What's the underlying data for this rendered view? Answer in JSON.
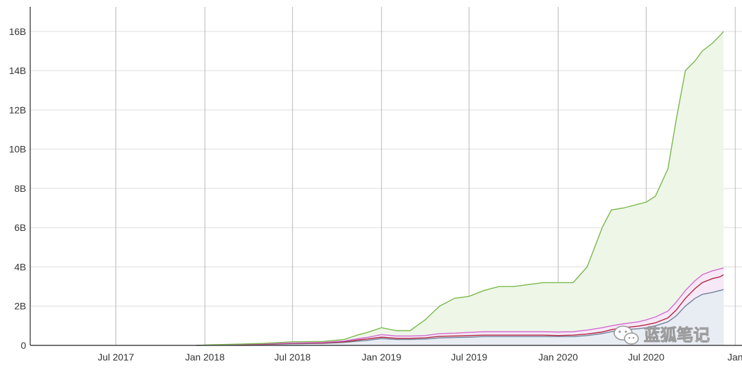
{
  "chart_data": {
    "type": "area",
    "title": "",
    "xlabel": "",
    "ylabel": "",
    "x_ticks": [
      {
        "date": "2017-07-01",
        "label": "Jul 2017"
      },
      {
        "date": "2018-01-01",
        "label": "Jan 2018"
      },
      {
        "date": "2018-07-01",
        "label": "Jul 2018"
      },
      {
        "date": "2019-01-01",
        "label": "Jan 2019"
      },
      {
        "date": "2019-07-01",
        "label": "Jul 2019"
      },
      {
        "date": "2020-01-01",
        "label": "Jan 2020"
      },
      {
        "date": "2020-07-01",
        "label": "Jul 2020"
      },
      {
        "date": "2021-01-01",
        "label": "Jan"
      }
    ],
    "y_ticks": [
      {
        "value": 0,
        "label": "0"
      },
      {
        "value": 2,
        "label": "2B"
      },
      {
        "value": 4,
        "label": "4B"
      },
      {
        "value": 6,
        "label": "6B"
      },
      {
        "value": 8,
        "label": "8B"
      },
      {
        "value": 10,
        "label": "10B"
      },
      {
        "value": 12,
        "label": "12B"
      },
      {
        "value": 14,
        "label": "14B"
      },
      {
        "value": 16,
        "label": "16B"
      }
    ],
    "xlim": [
      "2017-01-05",
      "2021-01-15"
    ],
    "ylim": [
      0,
      17.6
    ],
    "y_unit": "B",
    "grid": {
      "horizontal": true,
      "vertical": true
    },
    "legend": "none",
    "x": [
      "2017-12-15",
      "2018-01-15",
      "2018-03-01",
      "2018-05-01",
      "2018-07-01",
      "2018-09-01",
      "2018-10-15",
      "2018-11-15",
      "2018-12-01",
      "2019-01-01",
      "2019-02-01",
      "2019-03-01",
      "2019-04-01",
      "2019-05-01",
      "2019-06-01",
      "2019-07-01",
      "2019-08-01",
      "2019-09-01",
      "2019-10-01",
      "2019-11-01",
      "2019-12-01",
      "2020-01-01",
      "2020-02-01",
      "2020-03-01",
      "2020-04-01",
      "2020-04-20",
      "2020-05-15",
      "2020-06-15",
      "2020-07-01",
      "2020-07-20",
      "2020-08-15",
      "2020-09-01",
      "2020-09-20",
      "2020-10-10",
      "2020-10-25",
      "2020-11-15",
      "2020-12-01",
      "2020-12-08"
    ],
    "series": [
      {
        "color": "#6f8399",
        "fill": "#e8ecf3",
        "values": [
          0,
          0.01,
          0.03,
          0.05,
          0.08,
          0.1,
          0.15,
          0.22,
          0.25,
          0.35,
          0.3,
          0.3,
          0.32,
          0.38,
          0.4,
          0.42,
          0.45,
          0.45,
          0.45,
          0.45,
          0.45,
          0.45,
          0.45,
          0.5,
          0.6,
          0.7,
          0.8,
          0.85,
          0.9,
          1.0,
          1.2,
          1.5,
          2.0,
          2.4,
          2.6,
          2.7,
          2.8,
          2.85
        ]
      },
      {
        "color": "#b0263e",
        "fill": "none",
        "values": [
          0,
          0.02,
          0.04,
          0.06,
          0.1,
          0.12,
          0.18,
          0.28,
          0.32,
          0.42,
          0.36,
          0.36,
          0.38,
          0.46,
          0.48,
          0.5,
          0.52,
          0.52,
          0.52,
          0.52,
          0.52,
          0.5,
          0.52,
          0.58,
          0.68,
          0.8,
          0.9,
          0.98,
          1.05,
          1.15,
          1.4,
          1.8,
          2.4,
          2.9,
          3.2,
          3.4,
          3.5,
          3.6
        ]
      },
      {
        "color": "#d36bd0",
        "fill": "#f6e8f6",
        "values": [
          0,
          0.02,
          0.05,
          0.08,
          0.12,
          0.15,
          0.22,
          0.35,
          0.4,
          0.55,
          0.48,
          0.48,
          0.5,
          0.6,
          0.62,
          0.66,
          0.7,
          0.7,
          0.7,
          0.7,
          0.7,
          0.68,
          0.7,
          0.78,
          0.9,
          1.0,
          1.1,
          1.2,
          1.3,
          1.45,
          1.75,
          2.2,
          2.8,
          3.3,
          3.6,
          3.8,
          3.9,
          3.95
        ]
      },
      {
        "color": "#79b84a",
        "fill": "#eef6e8",
        "values": [
          0,
          0.03,
          0.06,
          0.1,
          0.18,
          0.2,
          0.3,
          0.55,
          0.65,
          0.9,
          0.75,
          0.75,
          1.3,
          2.0,
          2.4,
          2.5,
          2.8,
          3.0,
          3.0,
          3.1,
          3.2,
          3.2,
          3.2,
          4.0,
          6.0,
          6.9,
          7.0,
          7.2,
          7.3,
          7.6,
          9.0,
          11.5,
          14.0,
          14.5,
          15.0,
          15.4,
          15.8,
          16.0
        ]
      }
    ]
  },
  "watermark": {
    "text": "蓝狐笔记",
    "icon": "wechat-icon"
  }
}
